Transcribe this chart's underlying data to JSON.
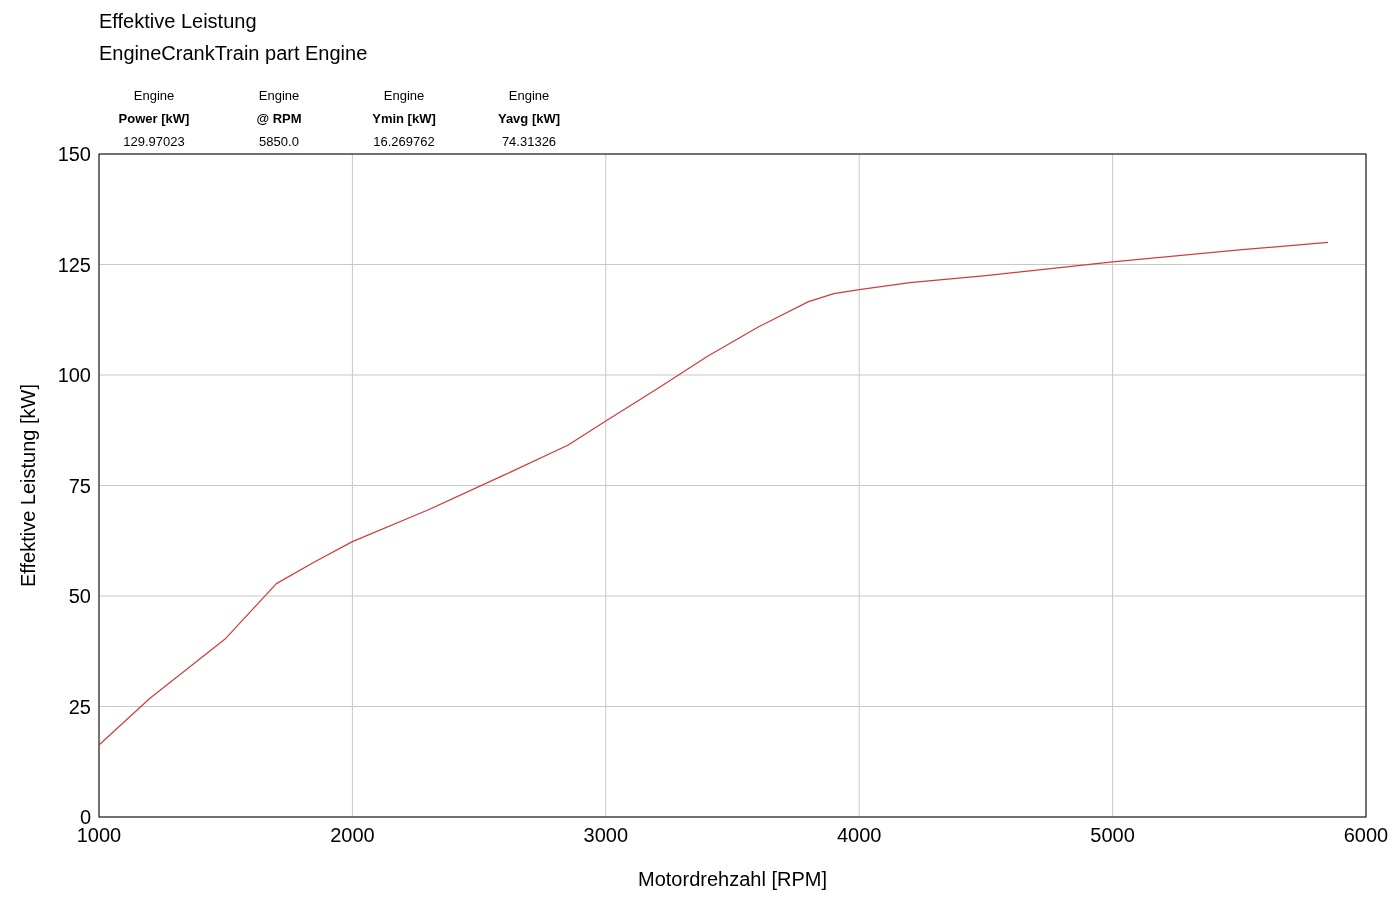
{
  "chart_data": {
    "type": "line",
    "title": "Effektive Leistung",
    "subtitle": "EngineCrankTrain part Engine",
    "xlabel": "Motordrehzahl [RPM]",
    "ylabel": "Effektive Leistung [kW]",
    "annotations": [
      "Engine",
      "Power [kW]",
      "129.97023",
      "Engine",
      "@ RPM",
      "5850.0",
      "Engine",
      "Ymin [kW]",
      "16.269762",
      "Engine",
      "Yavg [kW]",
      "74.31326"
    ],
    "x": [
      1000,
      1200,
      1500,
      1700,
      1850,
      2000,
      2300,
      2600,
      2850,
      3000,
      3200,
      3400,
      3600,
      3800,
      3900,
      4000,
      4200,
      4500,
      5000,
      5500,
      5850
    ],
    "series": [
      {
        "color": "#d03c3c",
        "values": [
          16.3,
          26.8,
          40.4,
          52.8,
          57.7,
          62.3,
          69.5,
          77.4,
          84.1,
          89.6,
          96.8,
          104.2,
          110.8,
          116.6,
          118.4,
          119.3,
          120.9,
          122.5,
          125.6,
          128.3,
          130
        ]
      }
    ],
    "xlim": [
      1000,
      6000
    ],
    "xticks": [
      1000,
      2000,
      3000,
      4000,
      5000,
      6000
    ],
    "ylim": [
      0,
      150
    ],
    "yticks": [
      0,
      25,
      50,
      75,
      100,
      125,
      150
    ],
    "grid": true,
    "marker": "none",
    "line_style": "solid"
  }
}
